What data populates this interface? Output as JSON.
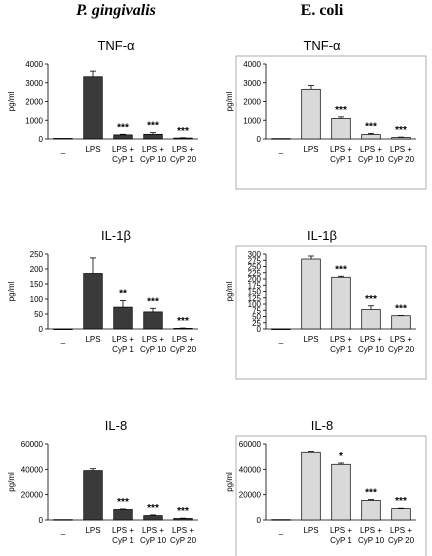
{
  "columns": {
    "left": "P. gingivalis",
    "right": "E. coli"
  },
  "colors": {
    "left_bar": "#3a3a3a",
    "right_bar": "#d9d9d9",
    "axis": "#000000"
  },
  "chart_data": [
    {
      "type": "bar",
      "title": "TNF-α",
      "ylabel": "pg/ml",
      "ylim": [
        0,
        4000
      ],
      "yticks": [
        0,
        1000,
        2000,
        3000,
        4000
      ],
      "categories": [
        "_",
        "LPS",
        "LPS + CyP 1",
        "LPS + CyP 10",
        "LPS + CyP 20"
      ],
      "values": [
        30,
        3320,
        220,
        250,
        50
      ],
      "errors": [
        0,
        300,
        30,
        90,
        15
      ],
      "significance": [
        "",
        "",
        "***",
        "***",
        "***"
      ],
      "column": "left",
      "bordered": false
    },
    {
      "type": "bar",
      "title": "TNF-α",
      "ylabel": "pg/ml",
      "ylim": [
        0,
        4000
      ],
      "yticks": [
        0,
        1000,
        2000,
        3000,
        4000
      ],
      "categories": [
        "_",
        "LPS",
        "LPS + CyP 1",
        "LPS + CyP 10",
        "LPS + CyP 20"
      ],
      "values": [
        20,
        2650,
        1100,
        240,
        80
      ],
      "errors": [
        0,
        200,
        80,
        60,
        20
      ],
      "significance": [
        "",
        "",
        "***",
        "***",
        "***"
      ],
      "column": "right",
      "bordered": true
    },
    {
      "type": "bar",
      "title": "IL-1β",
      "ylabel": "pg/ml",
      "ylim": [
        0,
        250
      ],
      "yticks": [
        0,
        50,
        100,
        150,
        200,
        250
      ],
      "categories": [
        "_",
        "LPS",
        "LPS + CyP 1",
        "LPS + CyP 10",
        "LPS + CyP 20"
      ],
      "values": [
        0,
        185,
        73,
        57,
        2
      ],
      "errors": [
        0,
        52,
        22,
        12,
        1
      ],
      "significance": [
        "",
        "",
        "**",
        "***",
        "***"
      ],
      "column": "left",
      "bordered": false
    },
    {
      "type": "bar",
      "title": "IL-1β",
      "ylabel": "pg/ml",
      "ylim": [
        0,
        300
      ],
      "yticks": [
        0,
        25,
        50,
        75,
        100,
        125,
        150,
        175,
        200,
        225,
        250,
        275,
        300
      ],
      "categories": [
        "_",
        "LPS",
        "LPS + CyP 1",
        "LPS + CyP 10",
        "LPS + CyP 20"
      ],
      "values": [
        0,
        280,
        207,
        78,
        53
      ],
      "errors": [
        0,
        12,
        4,
        15,
        1
      ],
      "significance": [
        "",
        "",
        "***",
        "***",
        "***"
      ],
      "column": "right",
      "bordered": true
    },
    {
      "type": "bar",
      "title": "IL-8",
      "ylabel": "pg/ml",
      "ylim": [
        0,
        60000
      ],
      "yticks": [
        0,
        20000,
        40000,
        60000
      ],
      "categories": [
        "_",
        "LPS",
        "LPS + CyP 1",
        "LPS + CyP 10",
        "LPS + CyP 20"
      ],
      "values": [
        300,
        39000,
        8300,
        3500,
        1200
      ],
      "errors": [
        0,
        1500,
        400,
        500,
        250
      ],
      "significance": [
        "",
        "",
        "***",
        "***",
        "***"
      ],
      "column": "left",
      "bordered": false
    },
    {
      "type": "bar",
      "title": "IL-8",
      "ylabel": "pg/ml",
      "ylim": [
        0,
        60000
      ],
      "yticks": [
        0,
        20000,
        40000,
        60000
      ],
      "categories": [
        "_",
        "LPS",
        "LPS + CyP 1",
        "LPS + CyP 10",
        "LPS + CyP 20"
      ],
      "values": [
        300,
        53500,
        44000,
        15500,
        9000
      ],
      "errors": [
        0,
        500,
        1000,
        600,
        300
      ],
      "significance": [
        "",
        "",
        "*",
        "***",
        "***"
      ],
      "column": "right",
      "bordered": true
    }
  ]
}
